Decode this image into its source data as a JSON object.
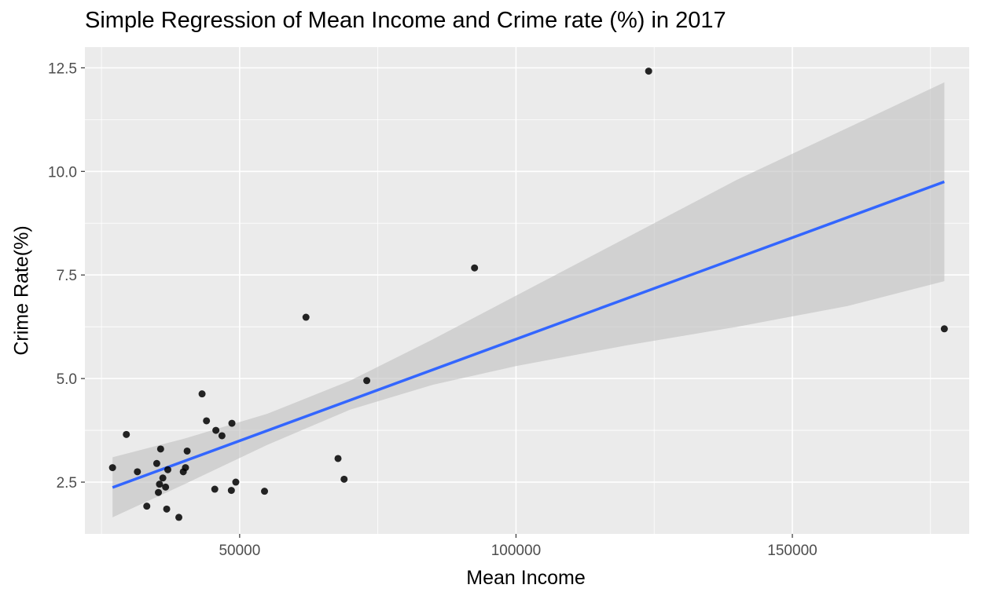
{
  "chart_data": {
    "type": "scatter",
    "title": "Simple Regression of Mean Income and Crime rate (%) in 2017",
    "xlabel": "Mean Income",
    "ylabel": "Crime Rate(%)",
    "xlim": [
      22000,
      182000
    ],
    "ylim": [
      1.25,
      13.0
    ],
    "x_ticks": [
      50000,
      100000,
      150000
    ],
    "x_tick_labels": [
      "50000",
      "100000",
      "150000"
    ],
    "y_ticks": [
      2.5,
      5.0,
      7.5,
      10.0,
      12.5
    ],
    "y_tick_labels": [
      "2.5",
      "5.0",
      "7.5",
      "10.0",
      "12.5"
    ],
    "grid": true,
    "colors": {
      "panel_background": "#ebebeb",
      "grid_major": "#ffffff",
      "points": "#000000",
      "fit_line": "#3366ff",
      "confidence_band": "#bfbfbf"
    },
    "points": [
      {
        "x": 27000,
        "y": 2.85
      },
      {
        "x": 29500,
        "y": 3.65
      },
      {
        "x": 31500,
        "y": 2.75
      },
      {
        "x": 33200,
        "y": 1.92
      },
      {
        "x": 35000,
        "y": 2.95
      },
      {
        "x": 35300,
        "y": 2.25
      },
      {
        "x": 35500,
        "y": 2.45
      },
      {
        "x": 35700,
        "y": 3.3
      },
      {
        "x": 36100,
        "y": 2.6
      },
      {
        "x": 36600,
        "y": 2.38
      },
      {
        "x": 36800,
        "y": 1.85
      },
      {
        "x": 37000,
        "y": 2.8
      },
      {
        "x": 39000,
        "y": 1.65
      },
      {
        "x": 39800,
        "y": 2.75
      },
      {
        "x": 40200,
        "y": 2.85
      },
      {
        "x": 40500,
        "y": 3.25
      },
      {
        "x": 43200,
        "y": 4.63
      },
      {
        "x": 44000,
        "y": 3.98
      },
      {
        "x": 45500,
        "y": 2.33
      },
      {
        "x": 45700,
        "y": 3.75
      },
      {
        "x": 46800,
        "y": 3.62
      },
      {
        "x": 48500,
        "y": 2.3
      },
      {
        "x": 48600,
        "y": 3.92
      },
      {
        "x": 49300,
        "y": 2.5
      },
      {
        "x": 54500,
        "y": 2.28
      },
      {
        "x": 62000,
        "y": 6.48
      },
      {
        "x": 67800,
        "y": 3.07
      },
      {
        "x": 68900,
        "y": 2.57
      },
      {
        "x": 73000,
        "y": 4.95
      },
      {
        "x": 92500,
        "y": 7.67
      },
      {
        "x": 124000,
        "y": 12.42
      },
      {
        "x": 177500,
        "y": 6.2
      }
    ],
    "fit_line": [
      {
        "x": 27000,
        "y": 2.37
      },
      {
        "x": 177500,
        "y": 9.75
      }
    ],
    "confidence_band": [
      {
        "x": 27000,
        "lower": 1.65,
        "upper": 3.1
      },
      {
        "x": 40000,
        "lower": 2.45,
        "upper": 3.55
      },
      {
        "x": 55000,
        "lower": 3.4,
        "upper": 4.15
      },
      {
        "x": 70000,
        "lower": 4.25,
        "upper": 4.95
      },
      {
        "x": 85000,
        "lower": 4.85,
        "upper": 5.95
      },
      {
        "x": 100000,
        "lower": 5.3,
        "upper": 7.0
      },
      {
        "x": 120000,
        "lower": 5.8,
        "upper": 8.4
      },
      {
        "x": 140000,
        "lower": 6.25,
        "upper": 9.8
      },
      {
        "x": 160000,
        "lower": 6.75,
        "upper": 11.05
      },
      {
        "x": 177500,
        "lower": 7.35,
        "upper": 12.15
      }
    ]
  }
}
